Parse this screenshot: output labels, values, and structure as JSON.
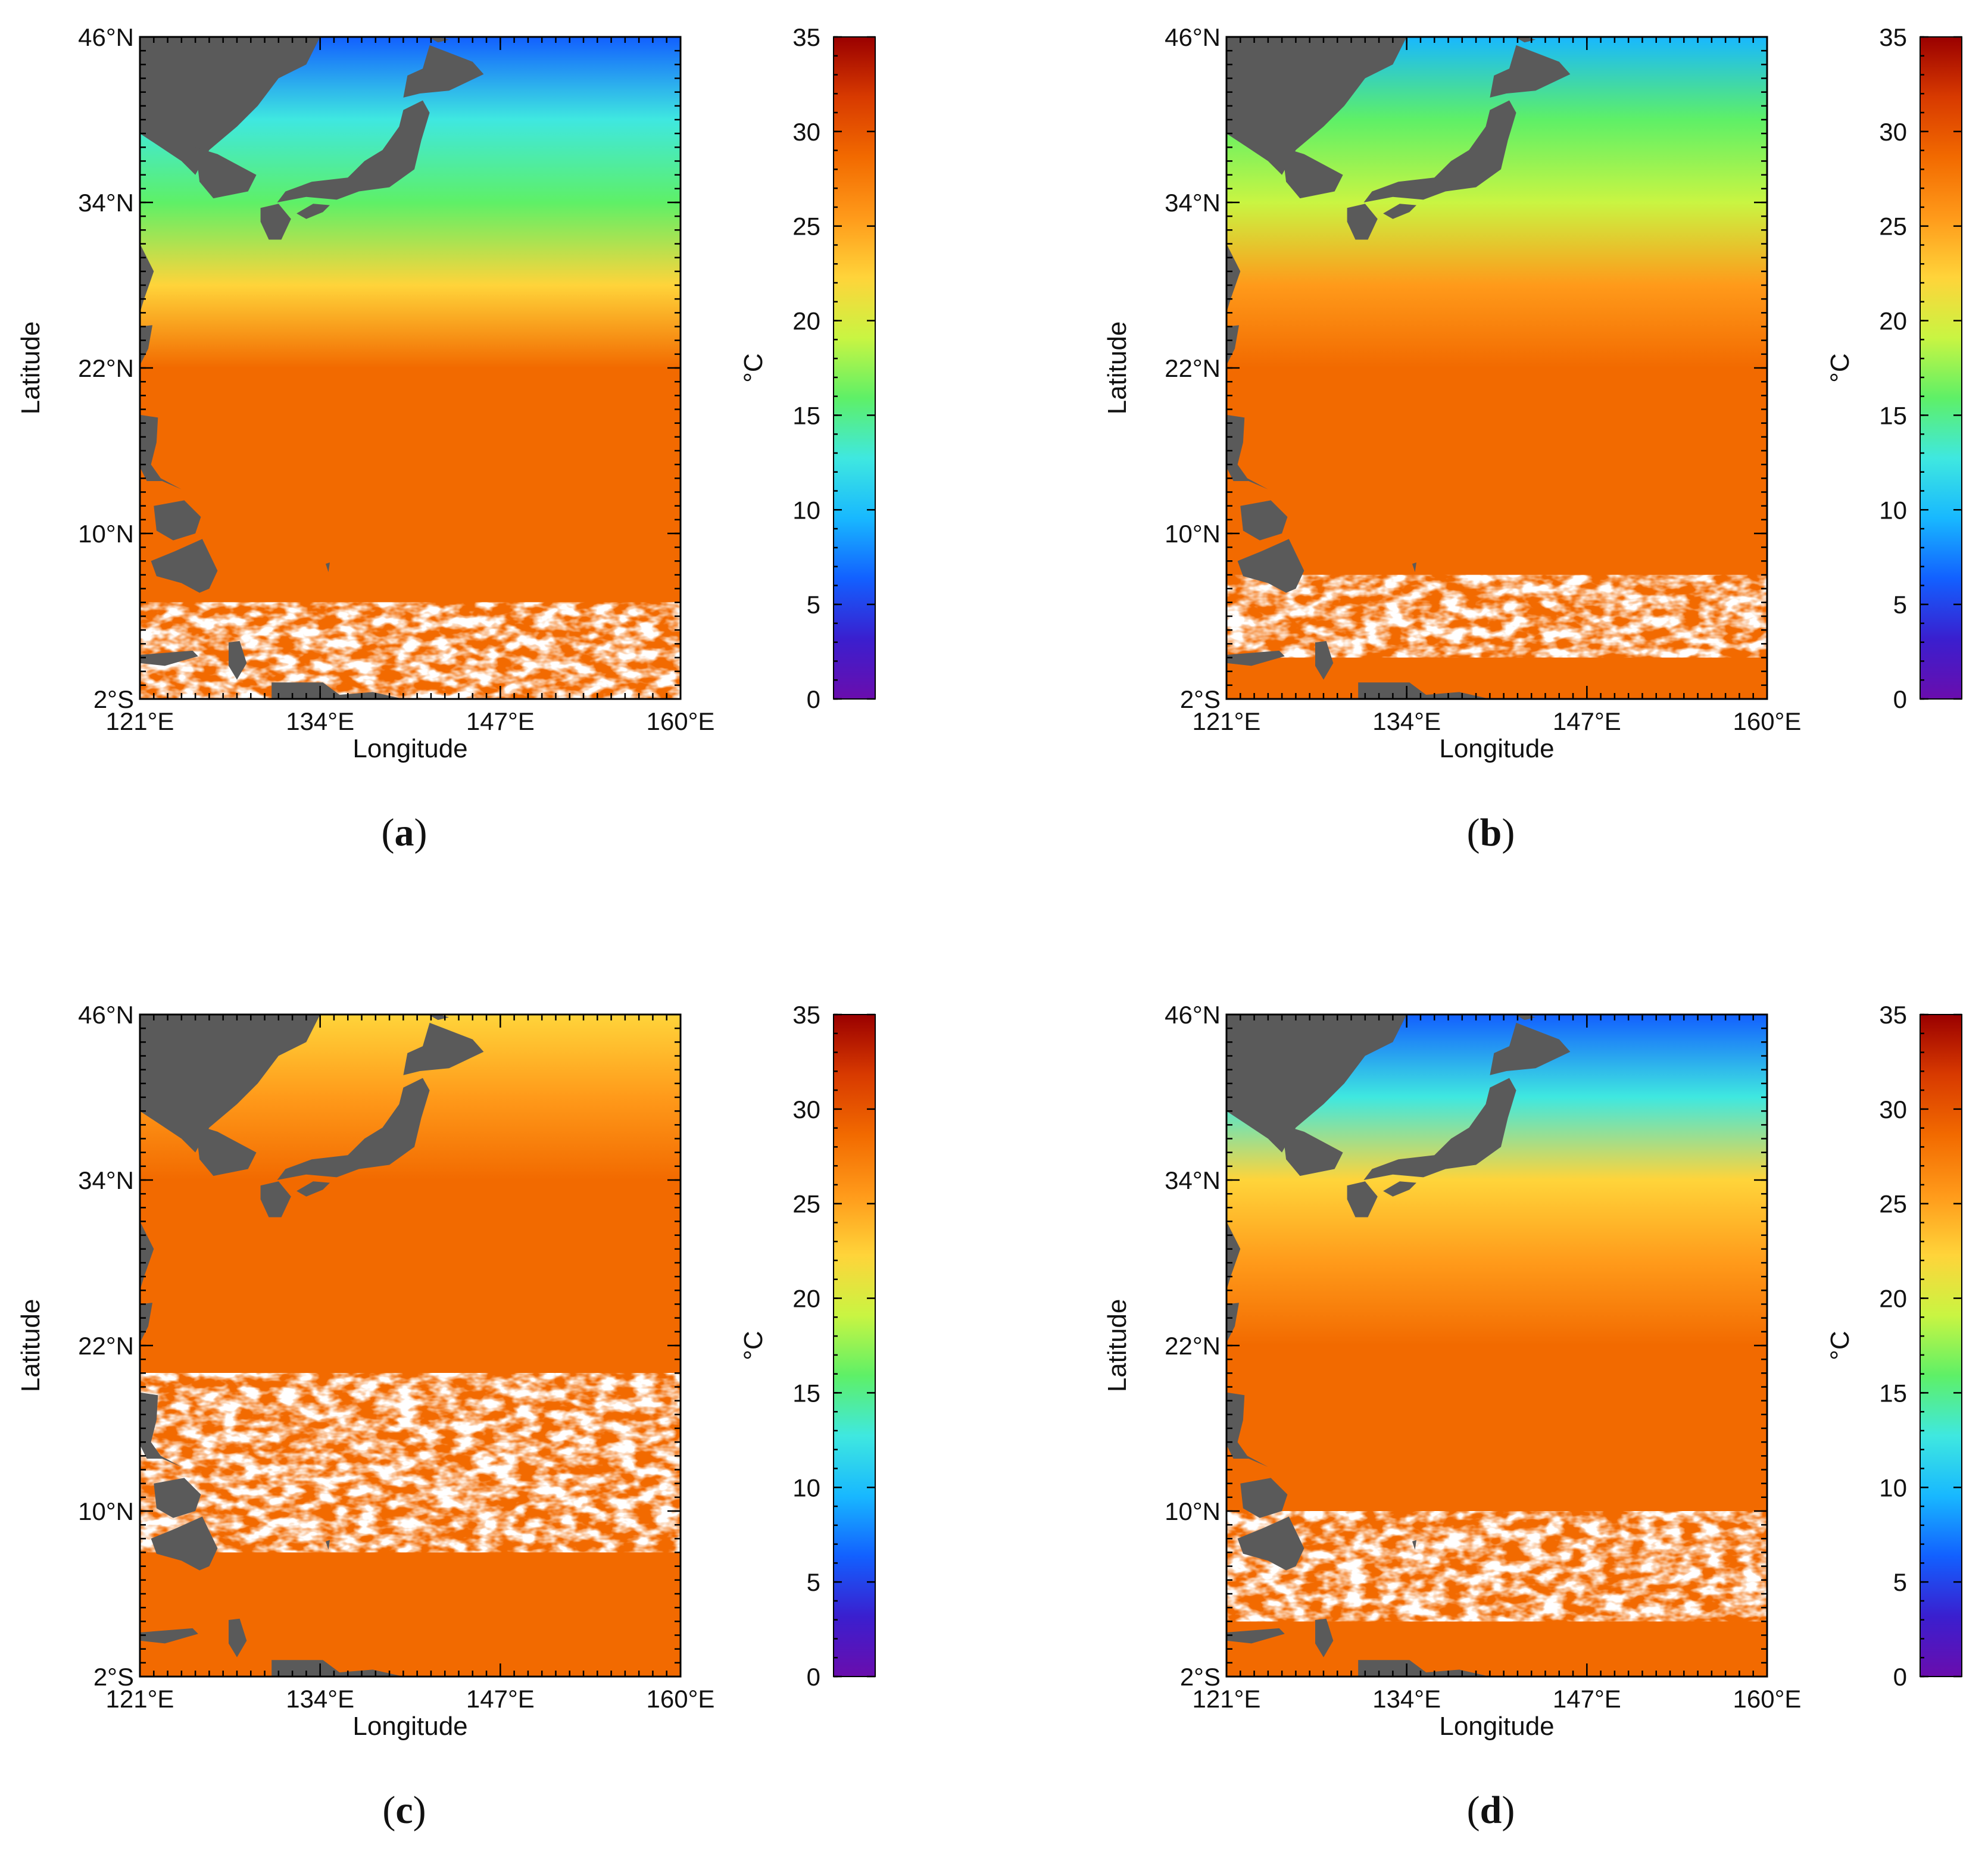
{
  "figure": {
    "axes": {
      "x_title": "Longitude",
      "y_title": "Latitude",
      "x_ticks": [
        "121°E",
        "134°E",
        "147°E",
        "160°E"
      ],
      "y_ticks": [
        "46°N",
        "34°N",
        "22°N",
        "10°N",
        "2°S"
      ],
      "lon_range": [
        121,
        160
      ],
      "lat_range": [
        -2,
        46
      ]
    },
    "colorbar": {
      "unit": "°C",
      "ticks": [
        "35",
        "30",
        "25",
        "20",
        "15",
        "10",
        "5",
        "0"
      ],
      "range": [
        0,
        35
      ],
      "colors": [
        "#6a0dad",
        "#3a1fcf",
        "#1260ff",
        "#18b8ff",
        "#3fe8e0",
        "#5ef067",
        "#c9f542",
        "#ffd43a",
        "#ff9a1a",
        "#f26a00",
        "#d83a00",
        "#9a0000"
      ]
    },
    "panels": [
      {
        "id": "a",
        "label_letter": "a",
        "bands_lat": [
          46,
          40,
          34,
          28,
          22,
          10,
          -2
        ],
        "bands_temp": [
          7,
          12,
          17,
          23,
          27.5,
          28.5,
          29.5
        ],
        "cloud_lat": [
          -2,
          5
        ]
      },
      {
        "id": "b",
        "label_letter": "b",
        "bands_lat": [
          46,
          40,
          34,
          28,
          22,
          10,
          -2
        ],
        "bands_temp": [
          11,
          15,
          20,
          25,
          28.5,
          29.5,
          30
        ],
        "cloud_lat": [
          1,
          7
        ]
      },
      {
        "id": "c",
        "label_letter": "c",
        "bands_lat": [
          46,
          40,
          34,
          28,
          22,
          10,
          -2
        ],
        "bands_temp": [
          21,
          26.5,
          28.5,
          29.5,
          30,
          30,
          30
        ],
        "cloud_lat": [
          7,
          20
        ]
      },
      {
        "id": "d",
        "label_letter": "d",
        "bands_lat": [
          46,
          40,
          34,
          28,
          22,
          10,
          -2
        ],
        "bands_temp": [
          7,
          13,
          21,
          26.5,
          28.5,
          29.5,
          30
        ],
        "cloud_lat": [
          2,
          10
        ]
      }
    ]
  }
}
